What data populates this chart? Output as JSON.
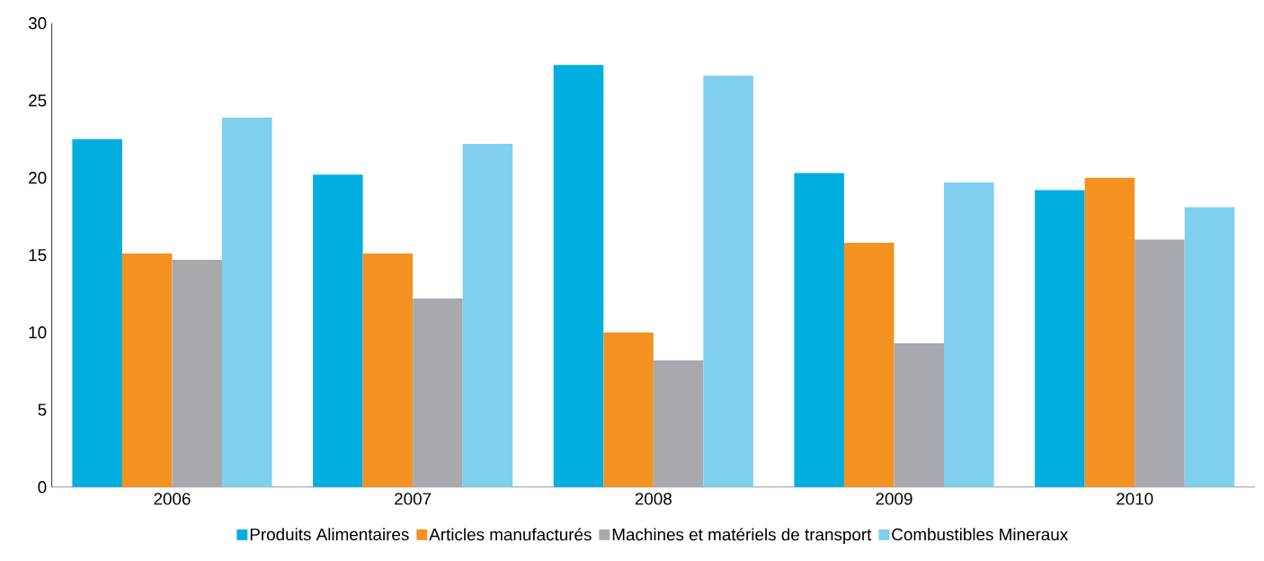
{
  "chart_data": {
    "type": "bar",
    "categories": [
      "2006",
      "2007",
      "2008",
      "2009",
      "2010"
    ],
    "series": [
      {
        "name": "Produits Alimentaires",
        "color": "#00aee0",
        "values": [
          22.5,
          20.2,
          27.3,
          20.3,
          19.2
        ]
      },
      {
        "name": "Articles manufacturés",
        "color": "#f39220",
        "values": [
          15.1,
          15.1,
          10.0,
          15.8,
          20.0
        ]
      },
      {
        "name": "Machines et matériels de transport",
        "color": "#a7a9ac",
        "values": [
          14.7,
          12.2,
          8.2,
          9.3,
          16.0
        ]
      },
      {
        "name": "Combustibles Mineraux",
        "color": "#7fcfee",
        "values": [
          23.9,
          22.2,
          26.6,
          19.7,
          18.1
        ]
      }
    ],
    "ylim": [
      0,
      30
    ],
    "yticks": [
      0,
      5,
      10,
      15,
      20,
      25,
      30
    ],
    "legend": "bottom"
  }
}
